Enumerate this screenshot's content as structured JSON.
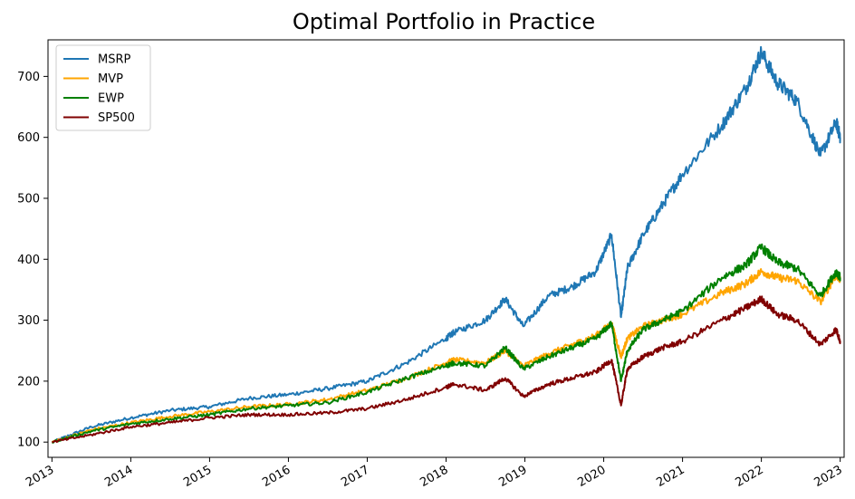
{
  "chart_data": {
    "type": "line",
    "title": "Optimal Portfolio in Practice",
    "xlabel": "",
    "ylabel": "",
    "xlim": [
      2012.95,
      2023.05
    ],
    "ylim": [
      75,
      760
    ],
    "x_ticks": [
      "2013",
      "2014",
      "2015",
      "2016",
      "2017",
      "2018",
      "2019",
      "2020",
      "2021",
      "2022",
      "2023"
    ],
    "y_ticks": [
      100,
      200,
      300,
      400,
      500,
      600,
      700
    ],
    "grid": false,
    "legend_position": "top-left",
    "x": [
      2013.0,
      2013.5,
      2014.0,
      2014.5,
      2015.0,
      2015.5,
      2016.0,
      2016.5,
      2017.0,
      2017.5,
      2018.0,
      2018.1,
      2018.5,
      2018.75,
      2018.98,
      2019.3,
      2019.6,
      2019.9,
      2020.1,
      2020.22,
      2020.3,
      2020.5,
      2020.75,
      2021.0,
      2021.5,
      2021.8,
      2022.0,
      2022.2,
      2022.45,
      2022.75,
      2022.95,
      2023.0
    ],
    "series": [
      {
        "name": "MSRP",
        "color": "#1f77b4",
        "values": [
          100,
          125,
          140,
          152,
          158,
          172,
          178,
          188,
          200,
          230,
          270,
          280,
          300,
          335,
          290,
          340,
          355,
          380,
          440,
          305,
          385,
          440,
          490,
          540,
          620,
          680,
          740,
          690,
          660,
          570,
          625,
          600
        ]
      },
      {
        "name": "MVP",
        "color": "#ffa500",
        "values": [
          100,
          120,
          132,
          142,
          150,
          158,
          162,
          170,
          185,
          205,
          230,
          235,
          230,
          250,
          225,
          245,
          260,
          275,
          295,
          240,
          270,
          290,
          300,
          310,
          345,
          360,
          380,
          370,
          365,
          330,
          375,
          365
        ]
      },
      {
        "name": "EWP",
        "color": "#008000",
        "values": [
          100,
          118,
          130,
          138,
          145,
          155,
          160,
          165,
          182,
          205,
          225,
          230,
          225,
          255,
          220,
          240,
          255,
          270,
          295,
          200,
          250,
          285,
          300,
          315,
          370,
          390,
          420,
          395,
          385,
          340,
          380,
          370
        ]
      },
      {
        "name": "SP500",
        "color": "#800000",
        "values": [
          100,
          112,
          125,
          132,
          140,
          145,
          145,
          148,
          155,
          170,
          190,
          195,
          185,
          205,
          175,
          195,
          205,
          215,
          235,
          160,
          220,
          240,
          255,
          265,
          300,
          320,
          335,
          310,
          300,
          260,
          285,
          265
        ]
      }
    ]
  }
}
